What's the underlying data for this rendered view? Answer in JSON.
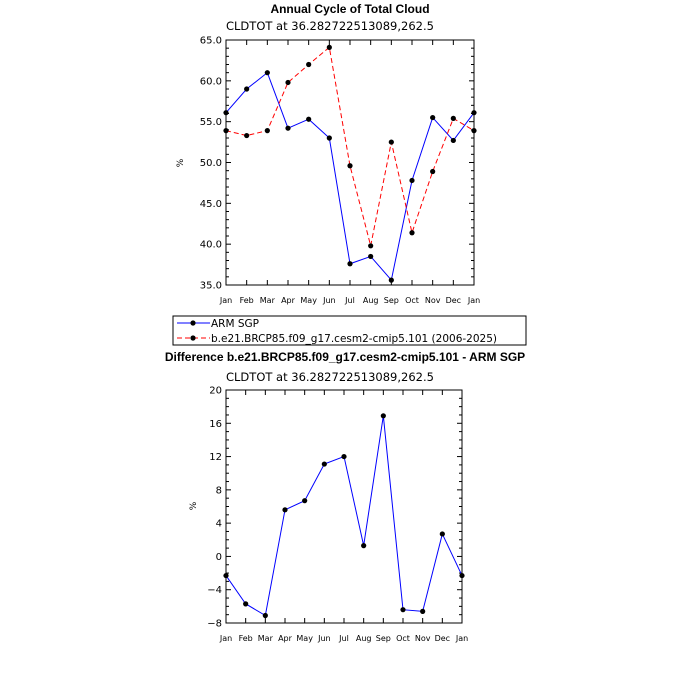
{
  "chart_data": [
    {
      "type": "line",
      "title": "Annual Cycle of Total Cloud",
      "subtitle": "CLDTOT at 36.282722513089,262.5",
      "ylabel": "%",
      "categories": [
        "Jan",
        "Feb",
        "Mar",
        "Apr",
        "May",
        "Jun",
        "Jul",
        "Aug",
        "Sep",
        "Oct",
        "Nov",
        "Dec",
        "Jan"
      ],
      "ylim": [
        35,
        65
      ],
      "yticks": [
        "35.0",
        "40.0",
        "45.0",
        "50.0",
        "55.0",
        "60.0",
        "65.0"
      ],
      "series": [
        {
          "name": "ARM SGP",
          "color": "#0000ff",
          "dash": "solid",
          "values": [
            56.1,
            59.0,
            61.0,
            54.2,
            55.3,
            53.0,
            37.6,
            38.5,
            35.6,
            47.8,
            55.5,
            52.7,
            56.1
          ]
        },
        {
          "name": "b.e21.BRCP85.f09_g17.cesm2-cmip5.101 (2006-2025)",
          "color": "#ff0000",
          "dash": "dashed",
          "values": [
            53.9,
            53.3,
            53.9,
            59.8,
            62.0,
            64.1,
            49.6,
            39.8,
            52.5,
            41.4,
            48.9,
            55.4,
            53.9
          ]
        }
      ],
      "legend": "below"
    },
    {
      "type": "line",
      "title": "Difference b.e21.BRCP85.f09_g17.cesm2-cmip5.101 - ARM SGP",
      "subtitle": "CLDTOT at 36.282722513089,262.5",
      "ylabel": "%",
      "categories": [
        "Jan",
        "Feb",
        "Mar",
        "Apr",
        "May",
        "Jun",
        "Jul",
        "Aug",
        "Sep",
        "Oct",
        "Nov",
        "Dec",
        "Jan"
      ],
      "ylim": [
        -8,
        20
      ],
      "yticks": [
        "−8",
        "−4",
        "0",
        "4",
        "8",
        "12",
        "16",
        "20"
      ],
      "series": [
        {
          "color": "#0000ff",
          "dash": "solid",
          "values": [
            -2.3,
            -5.7,
            -7.1,
            5.6,
            6.7,
            11.1,
            12.0,
            1.3,
            16.9,
            -6.4,
            -6.6,
            2.7,
            -2.3
          ]
        }
      ]
    }
  ]
}
